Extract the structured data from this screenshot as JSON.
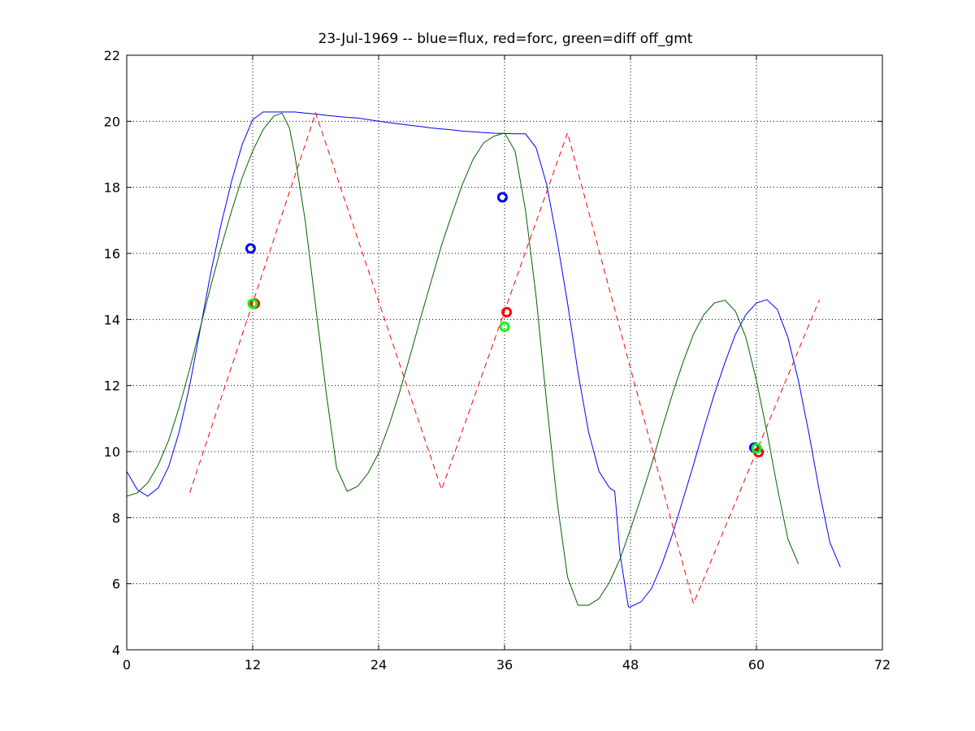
{
  "chart_data": {
    "type": "line",
    "title": "23-Jul-1969 -- blue=flux, red=forc, green=diff off_gmt",
    "xlabel": "",
    "ylabel": "",
    "xlim": [
      0,
      72
    ],
    "ylim": [
      4,
      22
    ],
    "xticks": [
      0,
      12,
      24,
      36,
      48,
      60,
      72
    ],
    "yticks": [
      4,
      6,
      8,
      10,
      12,
      14,
      16,
      18,
      20,
      22
    ],
    "grid": true,
    "series": [
      {
        "color": "#0000ff",
        "style": "solid",
        "points": [
          [
            0,
            9.4
          ],
          [
            1,
            8.85
          ],
          [
            2,
            8.65
          ],
          [
            3,
            8.9
          ],
          [
            4,
            9.55
          ],
          [
            5,
            10.6
          ],
          [
            6,
            12.0
          ],
          [
            7,
            13.7
          ],
          [
            8,
            15.4
          ],
          [
            9,
            16.9
          ],
          [
            10,
            18.2
          ],
          [
            11,
            19.3
          ],
          [
            12,
            20.05
          ],
          [
            13,
            20.28
          ],
          [
            14,
            20.28
          ],
          [
            15,
            20.28
          ],
          [
            16,
            20.28
          ],
          [
            17,
            20.25
          ],
          [
            18,
            20.22
          ],
          [
            19,
            20.18
          ],
          [
            20,
            20.15
          ],
          [
            21,
            20.12
          ],
          [
            22,
            20.1
          ],
          [
            23,
            20.05
          ],
          [
            24,
            20.0
          ],
          [
            25,
            19.96
          ],
          [
            26,
            19.92
          ],
          [
            27,
            19.88
          ],
          [
            28,
            19.84
          ],
          [
            29,
            19.8
          ],
          [
            30,
            19.77
          ],
          [
            31,
            19.74
          ],
          [
            32,
            19.7
          ],
          [
            33,
            19.68
          ],
          [
            34,
            19.66
          ],
          [
            35,
            19.64
          ],
          [
            36,
            19.63
          ],
          [
            37,
            19.62
          ],
          [
            38,
            19.62
          ],
          [
            39,
            19.2
          ],
          [
            40,
            18.1
          ],
          [
            41,
            16.4
          ],
          [
            42,
            14.5
          ],
          [
            43,
            12.4
          ],
          [
            44,
            10.6
          ],
          [
            45,
            9.4
          ],
          [
            46,
            8.9
          ],
          [
            46.5,
            8.8
          ],
          [
            47,
            6.9
          ],
          [
            47.8,
            5.3
          ],
          [
            48,
            5.3
          ],
          [
            49,
            5.45
          ],
          [
            50,
            5.85
          ],
          [
            51,
            6.6
          ],
          [
            52,
            7.5
          ],
          [
            53,
            8.55
          ],
          [
            54,
            9.6
          ],
          [
            55,
            10.7
          ],
          [
            56,
            11.75
          ],
          [
            57,
            12.7
          ],
          [
            58,
            13.55
          ],
          [
            59,
            14.15
          ],
          [
            60,
            14.5
          ],
          [
            61,
            14.6
          ],
          [
            62,
            14.3
          ],
          [
            63,
            13.45
          ],
          [
            64,
            12.15
          ],
          [
            65,
            10.55
          ],
          [
            66,
            8.8
          ],
          [
            67,
            7.25
          ],
          [
            68,
            6.5
          ]
        ]
      },
      {
        "color": "#ff0000",
        "style": "dashed",
        "points": [
          [
            6,
            8.75
          ],
          [
            18,
            20.25
          ],
          [
            30,
            8.85
          ],
          [
            42,
            19.65
          ],
          [
            54,
            5.4
          ],
          [
            66,
            14.6
          ]
        ]
      },
      {
        "color": "#006400",
        "style": "solid",
        "points": [
          [
            0,
            8.65
          ],
          [
            1,
            8.75
          ],
          [
            2,
            9.05
          ],
          [
            3,
            9.6
          ],
          [
            4,
            10.35
          ],
          [
            5,
            11.35
          ],
          [
            6,
            12.5
          ],
          [
            7,
            13.75
          ],
          [
            8,
            15.0
          ],
          [
            9,
            16.2
          ],
          [
            10,
            17.3
          ],
          [
            11,
            18.3
          ],
          [
            12,
            19.1
          ],
          [
            13,
            19.75
          ],
          [
            14,
            20.15
          ],
          [
            14.8,
            20.25
          ],
          [
            15.5,
            19.8
          ],
          [
            16,
            19.0
          ],
          [
            17,
            17.0
          ],
          [
            18,
            14.4
          ],
          [
            19,
            11.8
          ],
          [
            20,
            9.5
          ],
          [
            21,
            8.8
          ],
          [
            22,
            8.95
          ],
          [
            23,
            9.35
          ],
          [
            24,
            9.95
          ],
          [
            25,
            10.8
          ],
          [
            26,
            11.8
          ],
          [
            27,
            12.9
          ],
          [
            28,
            14.05
          ],
          [
            29,
            15.15
          ],
          [
            30,
            16.25
          ],
          [
            31,
            17.2
          ],
          [
            32,
            18.1
          ],
          [
            33,
            18.85
          ],
          [
            34,
            19.35
          ],
          [
            35,
            19.55
          ],
          [
            36,
            19.65
          ],
          [
            37,
            19.1
          ],
          [
            38,
            17.3
          ],
          [
            39,
            14.7
          ],
          [
            40,
            11.5
          ],
          [
            41,
            8.5
          ],
          [
            42,
            6.2
          ],
          [
            43,
            5.35
          ],
          [
            44,
            5.35
          ],
          [
            45,
            5.55
          ],
          [
            46,
            6.05
          ],
          [
            47,
            6.75
          ],
          [
            48,
            7.65
          ],
          [
            49,
            8.6
          ],
          [
            50,
            9.6
          ],
          [
            51,
            10.7
          ],
          [
            52,
            11.75
          ],
          [
            53,
            12.7
          ],
          [
            54,
            13.55
          ],
          [
            55,
            14.15
          ],
          [
            56,
            14.5
          ],
          [
            57,
            14.58
          ],
          [
            58,
            14.25
          ],
          [
            59,
            13.45
          ],
          [
            60,
            12.15
          ],
          [
            61,
            10.6
          ],
          [
            62,
            8.9
          ],
          [
            63,
            7.35
          ],
          [
            64,
            6.6
          ]
        ]
      }
    ],
    "markers": [
      {
        "x": 11.8,
        "y": 16.15,
        "color": "#0000ff"
      },
      {
        "x": 12.2,
        "y": 14.48,
        "color": "#ff0000"
      },
      {
        "x": 12.0,
        "y": 14.48,
        "color": "#00ff00"
      },
      {
        "x": 35.8,
        "y": 17.7,
        "color": "#0000ff"
      },
      {
        "x": 36.2,
        "y": 14.22,
        "color": "#ff0000"
      },
      {
        "x": 36.0,
        "y": 13.78,
        "color": "#00ff00"
      },
      {
        "x": 59.8,
        "y": 10.12,
        "color": "#0000ff"
      },
      {
        "x": 60.2,
        "y": 9.98,
        "color": "#ff0000"
      },
      {
        "x": 60.0,
        "y": 10.1,
        "color": "#00ff00"
      }
    ]
  }
}
